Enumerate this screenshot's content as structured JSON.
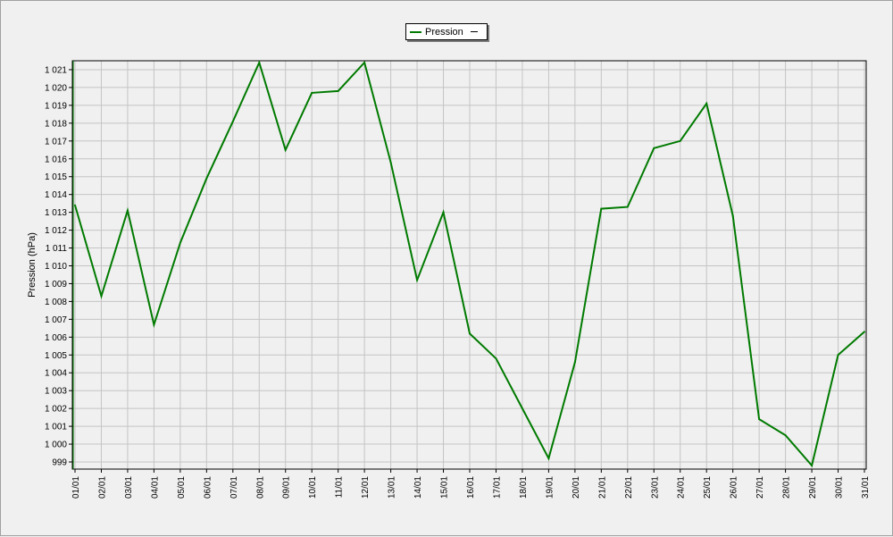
{
  "chart_data": {
    "type": "line",
    "title": "",
    "xlabel": "",
    "ylabel": "Pression (hPa)",
    "categories": [
      "01/01",
      "02/01",
      "03/01",
      "04/01",
      "05/01",
      "06/01",
      "07/01",
      "08/01",
      "09/01",
      "10/01",
      "11/01",
      "12/01",
      "13/01",
      "14/01",
      "15/01",
      "16/01",
      "17/01",
      "18/01",
      "19/01",
      "20/01",
      "21/01",
      "22/01",
      "23/01",
      "24/01",
      "25/01",
      "26/01",
      "27/01",
      "28/01",
      "29/01",
      "30/01",
      "31/01"
    ],
    "yticks": [
      "999",
      "1 000",
      "1 001",
      "1 002",
      "1 003",
      "1 004",
      "1 005",
      "1 006",
      "1 007",
      "1 008",
      "1 009",
      "1 010",
      "1 011",
      "1 012",
      "1 013",
      "1 014",
      "1 015",
      "1 016",
      "1 017",
      "1 018",
      "1 019",
      "1 020",
      "1 021"
    ],
    "ylim": [
      998.6,
      1021.5
    ],
    "grid": true,
    "legend_position": "top-center",
    "series": [
      {
        "name": "Pression",
        "color": "#007a00",
        "values": [
          1013.4,
          1008.3,
          1013.1,
          1006.7,
          1011.3,
          1014.9,
          1018.1,
          1021.4,
          1016.5,
          1019.7,
          1019.8,
          1021.4,
          1015.8,
          1009.2,
          1013.0,
          1006.2,
          1004.8,
          1002.0,
          999.2,
          1004.6,
          1013.2,
          1013.3,
          1016.6,
          1017.0,
          1019.1,
          1012.8,
          1001.4,
          1000.5,
          998.8,
          1005.0,
          1006.3
        ]
      }
    ]
  }
}
